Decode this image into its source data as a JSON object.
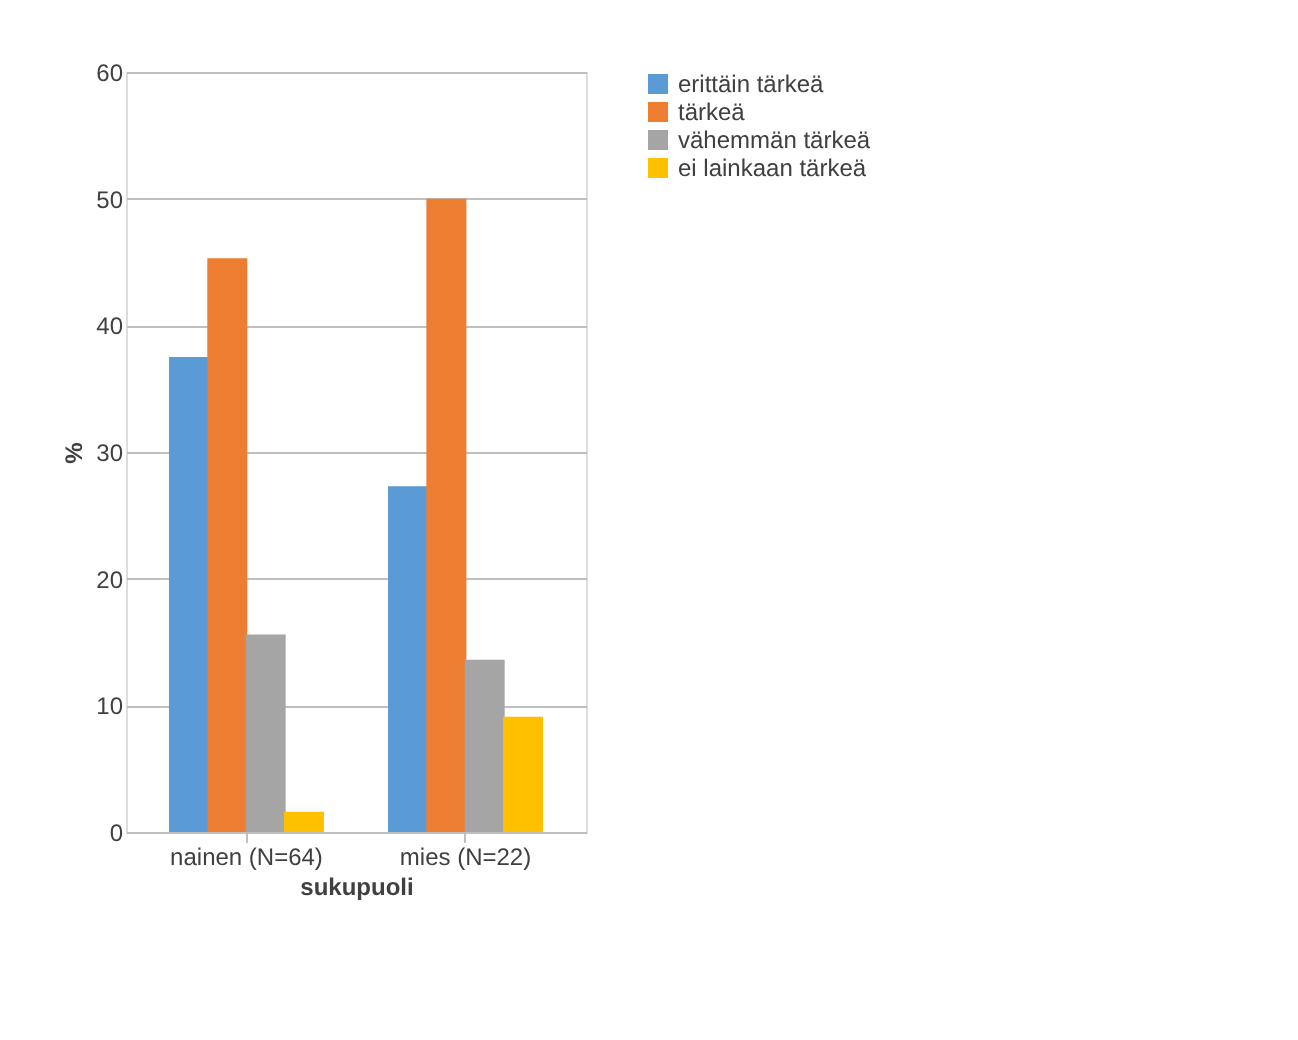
{
  "chart_data": {
    "type": "bar",
    "xlabel": "sukupuoli",
    "ylabel": "%",
    "categories": [
      "nainen (N=64)",
      "mies (N=22)"
    ],
    "series": [
      {
        "name": "erittäin tärkeä",
        "color": "#5b9bd5",
        "values": [
          37.5,
          27.3
        ]
      },
      {
        "name": "tärkeä",
        "color": "#ed7d31",
        "values": [
          45.3,
          50.0
        ]
      },
      {
        "name": "vähemmän tärkeä",
        "color": "#a5a5a5",
        "values": [
          15.6,
          13.6
        ]
      },
      {
        "name": "ei lainkaan tärkeä",
        "color": "#ffc000",
        "values": [
          1.6,
          9.1
        ]
      }
    ],
    "ylim": [
      0,
      60
    ],
    "yticks": [
      0,
      10,
      20,
      30,
      40,
      50,
      60
    ],
    "grid": "y",
    "legend": "right"
  }
}
